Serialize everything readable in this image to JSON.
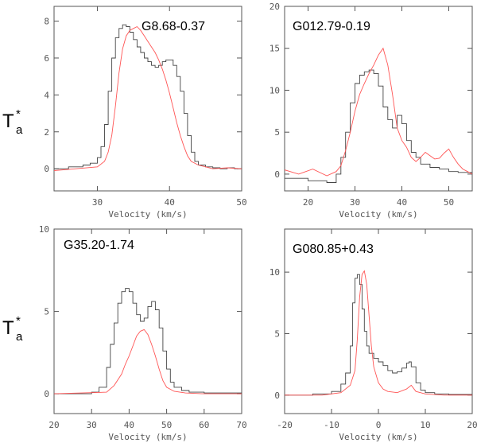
{
  "figure": {
    "ylabel_main": "T",
    "ylabel_sup": "*",
    "ylabel_sub": "a"
  },
  "chart_data": [
    {
      "type": "line",
      "title": "G8.68-0.37",
      "xlabel": "Velocity (km/s)",
      "ylabel": "",
      "xlim": [
        24,
        50
      ],
      "ylim": [
        -1.2,
        8.8
      ],
      "xticks": [
        30,
        40,
        50
      ],
      "yticks": [
        0,
        2,
        4,
        6,
        8
      ],
      "series": [
        {
          "name": "black",
          "color": "#444444",
          "step": true,
          "x": [
            24,
            26,
            28,
            29,
            30,
            30.5,
            31,
            31.5,
            32,
            32.5,
            33,
            33.5,
            34,
            34.5,
            35,
            35.5,
            36,
            36.5,
            37,
            37.5,
            38,
            38.5,
            39,
            39.5,
            40,
            40.5,
            41,
            41.5,
            42,
            42.5,
            43,
            43.5,
            44,
            45,
            46,
            47,
            48,
            49,
            50
          ],
          "y": [
            0.0,
            0.1,
            0.2,
            0.3,
            0.6,
            1.2,
            2.4,
            4.2,
            6.0,
            7.1,
            7.6,
            7.8,
            7.7,
            7.4,
            7.0,
            6.6,
            6.3,
            6.0,
            5.8,
            5.6,
            5.5,
            5.6,
            5.8,
            5.9,
            5.9,
            5.6,
            5.0,
            4.2,
            3.0,
            1.8,
            0.9,
            0.4,
            0.2,
            0.1,
            0.05,
            0.0,
            0.05,
            0.0,
            0.0
          ]
        },
        {
          "name": "red",
          "color": "#ff5555",
          "step": false,
          "x": [
            24,
            27,
            30,
            31,
            31.5,
            32,
            32.5,
            33,
            33.5,
            34,
            34.5,
            35,
            35.5,
            36,
            36.5,
            37,
            37.5,
            38,
            38.5,
            39,
            39.5,
            40,
            40.5,
            41,
            41.5,
            42,
            42.5,
            43,
            44,
            45,
            46,
            48,
            50
          ],
          "y": [
            -0.1,
            0.0,
            0.1,
            0.4,
            0.9,
            1.8,
            3.4,
            5.2,
            6.5,
            7.2,
            7.5,
            7.6,
            7.7,
            7.5,
            7.2,
            6.9,
            6.6,
            6.3,
            5.9,
            5.4,
            4.8,
            4.1,
            3.3,
            2.5,
            1.8,
            1.2,
            0.7,
            0.4,
            0.2,
            0.1,
            0.0,
            0.05,
            0.0
          ]
        }
      ]
    },
    {
      "type": "line",
      "title": "G012.79-0.19",
      "xlabel": "Velocity (km/s)",
      "ylabel": "",
      "xlim": [
        15,
        55
      ],
      "ylim": [
        -2.0,
        20.0
      ],
      "xticks": [
        20,
        30,
        40,
        50
      ],
      "yticks": [
        0,
        5,
        10,
        15,
        20
      ],
      "series": [
        {
          "name": "black",
          "color": "#444444",
          "step": true,
          "x": [
            15,
            20,
            24,
            26,
            27,
            28,
            29,
            30,
            31,
            32,
            33,
            34,
            35,
            36,
            37,
            38,
            39,
            40,
            41,
            42,
            43,
            44,
            46,
            48,
            50,
            52,
            55
          ],
          "y": [
            -0.5,
            -0.8,
            -1.0,
            0.0,
            2.0,
            5.0,
            8.5,
            10.8,
            11.8,
            12.2,
            12.4,
            12.0,
            10.5,
            8.0,
            6.5,
            5.5,
            7.0,
            6.0,
            4.0,
            2.6,
            2.0,
            1.2,
            0.8,
            0.6,
            0.3,
            0.2,
            0.0
          ]
        },
        {
          "name": "red",
          "color": "#ff5555",
          "step": false,
          "x": [
            15,
            18,
            21,
            24,
            26,
            27,
            28,
            29,
            30,
            31,
            32,
            33,
            34,
            35,
            36,
            37,
            38,
            39,
            40,
            41,
            42,
            43,
            44,
            45,
            46,
            47,
            48,
            49,
            50,
            51,
            52,
            53,
            54,
            55
          ],
          "y": [
            0.5,
            0.0,
            0.6,
            -0.2,
            0.3,
            1.0,
            2.8,
            5.0,
            7.5,
            9.5,
            10.8,
            12.0,
            13.0,
            14.2,
            15.0,
            13.0,
            9.5,
            5.5,
            4.0,
            3.2,
            2.0,
            1.5,
            2.0,
            2.6,
            2.2,
            1.8,
            1.9,
            2.5,
            3.0,
            2.0,
            1.2,
            0.6,
            0.3,
            0.0
          ]
        }
      ]
    },
    {
      "type": "line",
      "title": "G35.20-1.74",
      "xlabel": "Velocity (km/s)",
      "ylabel": "",
      "xlim": [
        20,
        70
      ],
      "ylim": [
        -1.2,
        10.0
      ],
      "xticks": [
        20,
        30,
        40,
        50,
        60,
        70
      ],
      "yticks": [
        0,
        5,
        10
      ],
      "series": [
        {
          "name": "black",
          "color": "#444444",
          "step": true,
          "x": [
            20,
            30,
            32,
            34,
            35,
            36,
            37,
            38,
            39,
            40,
            41,
            42,
            43,
            44,
            45,
            46,
            47,
            48,
            49,
            50,
            51,
            52,
            54,
            56,
            60,
            70
          ],
          "y": [
            0.0,
            0.1,
            0.4,
            1.6,
            3.0,
            4.3,
            5.5,
            6.2,
            6.4,
            6.2,
            5.5,
            4.8,
            4.4,
            4.6,
            5.3,
            5.6,
            5.1,
            4.0,
            2.6,
            1.5,
            0.7,
            0.4,
            0.2,
            0.1,
            0.05,
            0.0
          ]
        },
        {
          "name": "red",
          "color": "#ff5555",
          "step": false,
          "x": [
            20,
            34,
            36,
            38,
            39,
            40,
            41,
            42,
            43,
            44,
            45,
            46,
            47,
            48,
            49,
            50,
            52,
            55,
            60,
            70
          ],
          "y": [
            0.0,
            0.1,
            0.5,
            1.2,
            1.8,
            2.3,
            2.9,
            3.5,
            3.8,
            3.9,
            3.6,
            3.0,
            2.3,
            1.5,
            0.8,
            0.4,
            0.15,
            0.05,
            0.0,
            0.0
          ]
        }
      ]
    },
    {
      "type": "line",
      "title": "G080.85+0.43",
      "xlabel": "Velocity (km/s)",
      "ylabel": "",
      "xlim": [
        -20,
        20
      ],
      "ylim": [
        -1.5,
        13.5
      ],
      "xticks": [
        -20,
        -10,
        0,
        10,
        20
      ],
      "yticks": [
        0,
        5,
        10
      ],
      "series": [
        {
          "name": "black",
          "color": "#444444",
          "step": true,
          "x": [
            -20,
            -14,
            -10,
            -8,
            -7,
            -6,
            -5.5,
            -5,
            -4.5,
            -4,
            -3.5,
            -3,
            -2.5,
            -2,
            -1,
            0,
            1,
            2,
            3,
            4,
            5,
            6,
            6.5,
            7,
            8,
            9,
            10,
            12,
            15,
            20
          ],
          "y": [
            0.0,
            0.1,
            0.3,
            0.9,
            1.8,
            4.0,
            7.5,
            9.5,
            9.8,
            9.0,
            7.0,
            5.2,
            4.0,
            3.4,
            3.0,
            2.7,
            2.4,
            2.0,
            1.8,
            1.9,
            2.2,
            2.6,
            2.7,
            2.3,
            1.0,
            0.4,
            0.2,
            0.1,
            0.05,
            0.0
          ]
        },
        {
          "name": "red",
          "color": "#ff5555",
          "step": false,
          "x": [
            -20,
            -12,
            -8,
            -6,
            -5,
            -4.5,
            -4,
            -3.5,
            -3,
            -2.5,
            -2,
            -1.5,
            -1,
            0,
            1,
            2,
            4,
            6,
            7,
            8,
            10,
            14,
            20
          ],
          "y": [
            0.0,
            0.0,
            0.2,
            0.8,
            2.0,
            4.5,
            8.0,
            9.8,
            10.1,
            9.0,
            6.5,
            4.0,
            2.3,
            1.0,
            0.5,
            0.3,
            0.2,
            0.5,
            0.8,
            0.3,
            0.1,
            0.0,
            0.0
          ]
        }
      ]
    }
  ]
}
